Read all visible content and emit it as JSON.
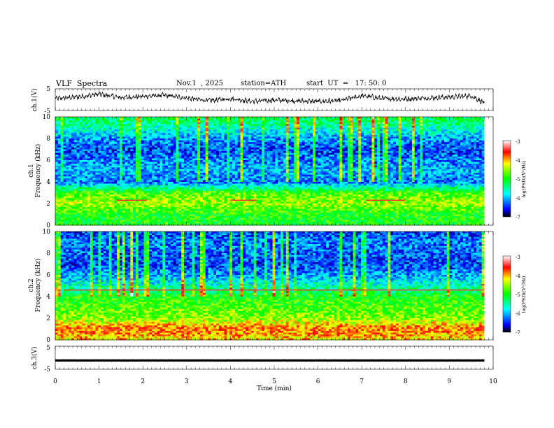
{
  "header": {
    "title": "VLF  Spectra",
    "date": "Nov.1  , 2025",
    "station": "station=ATH",
    "start": "start  UT  =   17: 50: 0"
  },
  "chart_data": [
    {
      "type": "line",
      "name": "ch1-waveform",
      "ylabel": "ch.1(V)",
      "ylim": [
        -5,
        5
      ],
      "yticks": [
        "5",
        "-5"
      ],
      "xlim": [
        0,
        10
      ],
      "x_end": 9.8,
      "series": [
        {
          "name": "ch.1",
          "x": [
            0,
            0.5,
            1,
            1.5,
            2,
            2.5,
            3,
            3.5,
            4,
            4.5,
            5,
            5.5,
            6,
            6.5,
            7,
            7.5,
            8,
            8.5,
            9,
            9.5,
            9.8
          ],
          "values": [
            0.5,
            1.2,
            2.5,
            1.0,
            1.5,
            2.0,
            0.8,
            -0.5,
            0.5,
            -0.8,
            -0.2,
            -0.6,
            -0.8,
            -0.5,
            1.8,
            0.5,
            0.3,
            0.8,
            1.2,
            1.8,
            -1.5
          ]
        }
      ]
    },
    {
      "type": "heatmap",
      "name": "ch1-spectrogram",
      "ylabel": "ch.1\nFrequency  (kHz)",
      "ylim": [
        0,
        10
      ],
      "yticks": [
        "0",
        "2",
        "4",
        "6",
        "8",
        "10"
      ],
      "xlim": [
        0,
        9.8
      ],
      "colorbar": {
        "label": "log(PSD)(V²/Hz)",
        "ticks": [
          "-3",
          "-4",
          "-5",
          "-6",
          "-7"
        ],
        "range": [
          -7,
          -3
        ]
      },
      "band_profile_khz": [
        0,
        1,
        2,
        3,
        4,
        5,
        6,
        7,
        8,
        9,
        10
      ],
      "band_profile_logpsd": [
        -5.0,
        -5.0,
        -4.5,
        -4.8,
        -6.3,
        -6.0,
        -6.2,
        -6.4,
        -6.1,
        -5.6,
        -5.2
      ],
      "annotated_lines": [
        {
          "khz": 2.3,
          "t_start": 1.4,
          "t_end": 2.1
        },
        {
          "khz": 2.3,
          "t_start": 4.0,
          "t_end": 4.6
        },
        {
          "khz": 2.3,
          "t_start": 7.1,
          "t_end": 8.0
        }
      ]
    },
    {
      "type": "heatmap",
      "name": "ch2-spectrogram",
      "ylabel": "ch.2\nFrequency  (kHz)",
      "ylim": [
        0,
        10
      ],
      "yticks": [
        "0",
        "2",
        "4",
        "6",
        "8",
        "10"
      ],
      "xlim": [
        0,
        9.8
      ],
      "colorbar": {
        "label": "log(PSD)(V²/Hz)",
        "ticks": [
          "-3",
          "-4",
          "-5",
          "-6",
          "-7"
        ],
        "range": [
          -7,
          -3
        ]
      },
      "band_profile_khz": [
        0,
        1,
        2,
        3,
        4,
        5,
        6,
        7,
        8,
        9,
        10
      ],
      "band_profile_logpsd": [
        -4.2,
        -3.8,
        -4.6,
        -4.8,
        -5.0,
        -5.6,
        -6.1,
        -6.4,
        -6.3,
        -6.2,
        -6.4
      ],
      "annotated_lines": [
        {
          "khz": 4.6,
          "t_start": 0.2,
          "t_end": 9.8
        }
      ]
    },
    {
      "type": "line",
      "name": "ch3-waveform",
      "ylabel": "ch.3(V)",
      "ylim": [
        -5,
        5
      ],
      "yticks": [
        "5",
        "-5"
      ],
      "xlim": [
        0,
        10
      ],
      "x_end": 9.8,
      "series": [
        {
          "name": "ch.3",
          "x": [
            0,
            9.8
          ],
          "values": [
            -1.2,
            -1.2
          ]
        }
      ]
    }
  ],
  "xaxis": {
    "label": "Time  (min)",
    "ticks": [
      "0",
      "1",
      "2",
      "3",
      "4",
      "5",
      "6",
      "7",
      "8",
      "9",
      "10"
    ],
    "xlim": [
      0,
      10
    ]
  }
}
